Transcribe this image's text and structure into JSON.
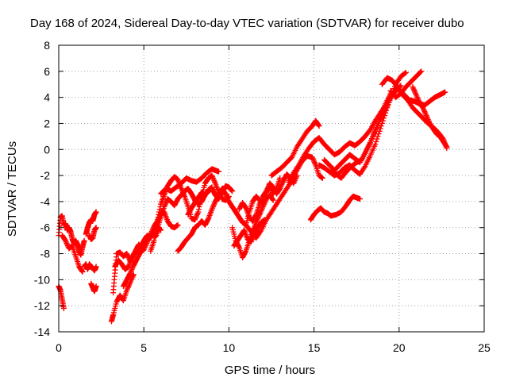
{
  "colors": {
    "series": "#ff0000",
    "grid": "#a0a0a0",
    "axis": "#000000",
    "background": "#ffffff"
  },
  "chart_data": {
    "type": "scatter",
    "title": "Day 168 of 2024, Sidereal Day-to-day VTEC variation (SDTVAR) for receiver dubo",
    "xlabel": "GPS time / hours",
    "ylabel": "SDTVAR / TECUs",
    "xlim": [
      0,
      25
    ],
    "ylim": [
      -14,
      8
    ],
    "xticks": [
      0,
      5,
      10,
      15,
      20,
      25
    ],
    "xtick_labels": [
      "0",
      "5",
      "10",
      "15",
      "20",
      "25"
    ],
    "yticks": [
      -14,
      -12,
      -10,
      -8,
      -6,
      -4,
      -2,
      0,
      2,
      4,
      6,
      8
    ],
    "ytick_labels": [
      "-14",
      "-12",
      "-10",
      "-8",
      "-6",
      "-4",
      "-2",
      "0",
      "2",
      "4",
      "6",
      "8"
    ],
    "grid": true,
    "grid_style": "dotted",
    "marker": "+",
    "series": [
      {
        "x": [
          0.0,
          0.1,
          0.2,
          0.3
        ],
        "y": [
          -10.5,
          -10.8,
          -11.5,
          -12.2
        ]
      },
      {
        "x": [
          0.0,
          0.1,
          0.2,
          0.3,
          0.4,
          0.5,
          0.6,
          0.7,
          0.8,
          0.9,
          1.0,
          1.1,
          1.2,
          1.3,
          1.4,
          1.5
        ],
        "y": [
          -6.6,
          -5.2,
          -5.1,
          -5.8,
          -5.7,
          -6.2,
          -6.0,
          -6.3,
          -6.9,
          -7.2,
          -7.0,
          -7.3,
          -7.8,
          -8.1,
          -7.5,
          -7.0
        ]
      },
      {
        "x": [
          0.2,
          0.4,
          0.6,
          0.8,
          1.0,
          1.2,
          1.4
        ],
        "y": [
          -6.6,
          -7.0,
          -7.6,
          -7.4,
          -8.2,
          -9.0,
          -9.4
        ]
      },
      {
        "x": [
          1.5,
          1.6,
          1.7,
          1.8,
          1.9,
          2.0,
          2.1,
          2.2
        ],
        "y": [
          -9.0,
          -8.8,
          -9.2,
          -8.8,
          -9.0,
          -9.1,
          -9.3,
          -9.0
        ]
      },
      {
        "x": [
          1.6,
          1.7,
          1.8,
          1.9,
          2.0,
          2.1,
          2.2
        ],
        "y": [
          -6.5,
          -6.0,
          -5.6,
          -5.4,
          -5.5,
          -5.0,
          -4.8
        ]
      },
      {
        "x": [
          1.8,
          1.9,
          2.0,
          2.1,
          2.2
        ],
        "y": [
          -6.6,
          -6.9,
          -6.8,
          -6.2,
          -6.0
        ]
      },
      {
        "x": [
          1.9,
          2.0,
          2.1,
          2.2
        ],
        "y": [
          -10.3,
          -10.6,
          -10.9,
          -10.5
        ]
      },
      {
        "x": [
          3.1,
          3.2,
          3.4,
          3.6,
          3.8,
          4.0,
          4.2,
          4.4
        ],
        "y": [
          -13.2,
          -12.7,
          -11.7,
          -11.2,
          -11.6,
          -10.8,
          -10.2,
          -9.6
        ]
      },
      {
        "x": [
          3.2,
          3.3,
          3.4,
          3.6,
          3.8,
          4.0,
          4.2,
          4.4,
          4.6,
          4.8,
          5.0,
          5.2,
          5.4,
          5.6,
          5.8,
          6.0
        ],
        "y": [
          -11.0,
          -9.5,
          -8.0,
          -7.9,
          -8.2,
          -8.0,
          -8.6,
          -8.1,
          -7.8,
          -7.5,
          -7.0,
          -6.6,
          -6.8,
          -6.2,
          -5.9,
          -6.2
        ]
      },
      {
        "x": [
          3.3,
          3.5,
          3.7,
          3.9,
          4.1,
          4.3,
          4.5,
          4.7,
          4.9,
          5.1,
          5.3,
          5.5,
          5.7,
          5.9
        ],
        "y": [
          -9.0,
          -8.5,
          -8.8,
          -9.2,
          -9.0,
          -8.3,
          -7.8,
          -7.3,
          -7.6,
          -7.0,
          -6.9,
          -6.4,
          -6.7,
          -6.0
        ]
      },
      {
        "x": [
          3.8,
          4.0,
          4.2,
          4.4,
          4.6,
          4.8,
          5.0,
          5.2,
          5.4,
          5.6,
          5.8,
          6.0,
          6.2,
          6.4,
          6.6,
          6.8,
          7.0
        ],
        "y": [
          -10.5,
          -10.0,
          -9.5,
          -8.9,
          -8.4,
          -7.9,
          -7.7,
          -7.1,
          -6.5,
          -5.9,
          -5.5,
          -4.9,
          -4.8,
          -5.5,
          -5.9,
          -6.0,
          -5.8
        ]
      },
      {
        "x": [
          5.4,
          5.6,
          5.8,
          6.0,
          6.2,
          6.4,
          6.6,
          6.8,
          7.0,
          7.2,
          7.4,
          7.6,
          7.8,
          8.0,
          8.2,
          8.4,
          8.6,
          8.8,
          9.0,
          9.2,
          9.4,
          9.6,
          9.8,
          10.0
        ],
        "y": [
          -7.8,
          -7.0,
          -5.4,
          -4.2,
          -3.5,
          -2.8,
          -2.4,
          -2.1,
          -2.3,
          -3.0,
          -3.6,
          -4.4,
          -5.3,
          -5.4,
          -4.8,
          -3.6,
          -2.6,
          -2.2,
          -2.0,
          -2.6,
          -3.3,
          -3.8,
          -3.9,
          -3.6
        ]
      },
      {
        "x": [
          5.8,
          6.0,
          6.2,
          6.4,
          6.6,
          6.8,
          7.0,
          7.2,
          7.4,
          7.6,
          7.8,
          8.0,
          8.2,
          8.4,
          8.6,
          8.8,
          9.0
        ],
        "y": [
          -6.0,
          -5.2,
          -4.4,
          -3.8,
          -4.0,
          -4.3,
          -3.8,
          -3.5,
          -3.2,
          -3.0,
          -3.4,
          -3.9,
          -4.2,
          -4.0,
          -3.5,
          -3.1,
          -2.9
        ]
      },
      {
        "x": [
          6.0,
          6.3,
          6.6,
          6.9,
          7.2,
          7.5,
          7.8,
          8.1,
          8.4,
          8.7,
          9.0,
          9.2,
          9.4
        ],
        "y": [
          -3.4,
          -3.0,
          -3.2,
          -2.9,
          -2.6,
          -2.2,
          -2.4,
          -2.5,
          -2.2,
          -1.8,
          -1.5,
          -1.6,
          -1.7
        ]
      },
      {
        "x": [
          7.0,
          7.2,
          7.4,
          7.6,
          7.8,
          8.0,
          8.2,
          8.4,
          8.6,
          8.8,
          9.0,
          9.2,
          9.4,
          9.6
        ],
        "y": [
          -7.8,
          -7.5,
          -7.1,
          -6.8,
          -6.5,
          -6.0,
          -5.8,
          -5.5,
          -5.8,
          -5.3,
          -4.6,
          -4.0,
          -3.5,
          -3.0
        ]
      },
      {
        "x": [
          7.6,
          7.8,
          8.0,
          8.2,
          8.4,
          8.6,
          8.8,
          9.0,
          9.2,
          9.4,
          9.6,
          9.8,
          10.0,
          10.2
        ],
        "y": [
          -5.0,
          -4.5,
          -4.1,
          -3.7,
          -3.3,
          -3.5,
          -3.2,
          -3.0,
          -3.5,
          -3.8,
          -3.3,
          -2.8,
          -2.9,
          -3.2
        ]
      },
      {
        "x": [
          9.6,
          9.8,
          10.0,
          10.2,
          10.4,
          10.6,
          10.8,
          11.0,
          11.2,
          11.4,
          11.6,
          11.8,
          12.0,
          12.2,
          12.4,
          12.6,
          12.8,
          13.0
        ],
        "y": [
          -3.0,
          -3.4,
          -4.0,
          -4.4,
          -4.8,
          -5.2,
          -5.6,
          -5.8,
          -4.8,
          -4.0,
          -3.6,
          -3.9,
          -4.1,
          -3.3,
          -2.8,
          -3.4,
          -3.0,
          -2.2
        ]
      },
      {
        "x": [
          10.2,
          10.4,
          10.6,
          10.8,
          11.0,
          11.2,
          11.4,
          11.6,
          11.8,
          12.0,
          12.2,
          12.4,
          12.6
        ],
        "y": [
          -6.0,
          -7.0,
          -7.5,
          -8.3,
          -7.8,
          -7.0,
          -6.3,
          -5.6,
          -5.0,
          -4.4,
          -3.8,
          -3.5,
          -3.9
        ]
      },
      {
        "x": [
          10.3,
          10.5,
          10.7,
          10.9,
          11.1,
          11.3,
          11.5,
          11.7,
          11.9,
          12.1
        ],
        "y": [
          -7.4,
          -7.0,
          -6.6,
          -6.2,
          -6.9,
          -7.1,
          -6.5,
          -6.0,
          -5.6,
          -5.4
        ]
      },
      {
        "x": [
          10.6,
          10.8,
          11.0,
          11.2,
          11.4,
          11.6,
          11.8,
          12.0,
          12.2,
          12.4,
          12.6,
          12.8,
          13.0,
          13.2,
          13.4,
          13.6,
          13.8,
          14.0
        ],
        "y": [
          -4.6,
          -4.1,
          -4.5,
          -5.2,
          -5.5,
          -5.0,
          -4.2,
          -3.6,
          -3.2,
          -2.6,
          -2.9,
          -3.4,
          -3.0,
          -2.4,
          -1.9,
          -2.2,
          -2.6,
          -2.0
        ]
      },
      {
        "x": [
          11.0,
          11.3,
          11.6,
          11.9,
          12.2,
          12.5,
          12.8,
          13.1,
          13.4,
          13.7,
          14.0,
          14.3,
          14.6,
          14.9,
          15.1,
          15.3,
          15.5
        ],
        "y": [
          -5.8,
          -6.3,
          -6.8,
          -6.2,
          -5.4,
          -4.8,
          -4.2,
          -3.6,
          -3.0,
          -2.4,
          -1.6,
          -0.9,
          -0.5,
          -0.6,
          -1.2,
          -2.0,
          -2.2
        ]
      },
      {
        "x": [
          12.5,
          12.8,
          13.1,
          13.4,
          13.7,
          14.0,
          14.3,
          14.6,
          14.9,
          15.1,
          15.3
        ],
        "y": [
          -2.0,
          -1.7,
          -1.4,
          -1.0,
          -0.6,
          0.2,
          0.8,
          1.4,
          1.8,
          2.2,
          1.8
        ]
      },
      {
        "x": [
          13.5,
          13.8,
          14.1,
          14.4,
          14.7,
          15.0,
          15.3,
          15.6,
          15.9,
          16.2,
          16.5,
          16.8,
          17.1,
          17.4,
          17.7,
          18.0,
          18.3,
          18.6,
          18.9,
          19.2,
          19.5,
          19.8,
          20.1
        ],
        "y": [
          -2.5,
          -1.8,
          -1.2,
          -0.5,
          0.1,
          0.6,
          0.9,
          0.4,
          0.0,
          -0.4,
          -0.2,
          0.2,
          0.5,
          0.3,
          0.6,
          1.0,
          1.5,
          2.2,
          2.8,
          3.4,
          4.0,
          4.5,
          4.9
        ]
      },
      {
        "x": [
          15.3,
          15.6,
          15.9,
          16.2,
          16.5,
          16.8,
          17.1,
          17.4,
          17.7,
          18.0,
          18.3,
          18.6,
          18.9,
          19.2,
          19.5,
          19.8,
          20.1,
          20.4
        ],
        "y": [
          -1.2,
          -1.4,
          -1.7,
          -2.0,
          -1.8,
          -1.4,
          -1.2,
          -1.6,
          -1.9,
          -1.3,
          -0.5,
          0.4,
          1.6,
          2.8,
          4.0,
          5.0,
          5.6,
          5.9
        ]
      },
      {
        "x": [
          15.6,
          15.9,
          16.2,
          16.5,
          16.8,
          17.1,
          17.4,
          17.7,
          18.0,
          18.3,
          18.6,
          18.9,
          19.2,
          19.5
        ],
        "y": [
          -0.8,
          -1.2,
          -1.6,
          -1.2,
          -0.8,
          -0.4,
          -0.7,
          -1.0,
          -0.3,
          0.5,
          1.5,
          2.5,
          3.5,
          4.3
        ]
      },
      {
        "x": [
          16.0,
          16.3,
          16.6,
          16.9,
          17.2,
          17.5,
          17.8,
          18.1,
          18.4,
          18.7,
          19.0,
          19.3,
          19.6,
          19.9
        ],
        "y": [
          -1.6,
          -1.9,
          -2.2,
          -1.7,
          -1.3,
          -1.0,
          -0.8,
          0.0,
          0.8,
          1.7,
          2.6,
          3.3,
          4.2,
          4.8
        ]
      },
      {
        "x": [
          14.8,
          15.0,
          15.2,
          15.4,
          15.6,
          15.8,
          16.0,
          16.3,
          16.6,
          16.9,
          17.1,
          17.3,
          17.5,
          17.7
        ],
        "y": [
          -5.4,
          -5.0,
          -4.7,
          -4.5,
          -4.8,
          -4.9,
          -5.1,
          -5.0,
          -4.8,
          -4.3,
          -3.9,
          -3.6,
          -3.7,
          -3.8
        ]
      },
      {
        "x": [
          19.0,
          19.3,
          19.6,
          19.9,
          20.2,
          20.5,
          20.8,
          21.1,
          21.4,
          21.7,
          22.0,
          22.3,
          22.6,
          22.8
        ],
        "y": [
          5.0,
          5.5,
          5.3,
          4.8,
          4.2,
          3.8,
          3.2,
          2.8,
          2.4,
          2.0,
          1.7,
          1.3,
          0.8,
          0.1
        ]
      },
      {
        "x": [
          19.5,
          19.8,
          20.1,
          20.4,
          20.7,
          21.0,
          21.3
        ],
        "y": [
          4.5,
          4.0,
          4.3,
          4.8,
          5.2,
          5.6,
          6.0
        ]
      },
      {
        "x": [
          20.0,
          20.3,
          20.6,
          20.9,
          21.2,
          21.5,
          21.8,
          22.1,
          22.4,
          22.7
        ],
        "y": [
          4.6,
          4.2,
          3.8,
          3.7,
          3.5,
          3.4,
          3.7,
          4.0,
          4.2,
          4.4
        ]
      },
      {
        "x": [
          20.8,
          21.0,
          21.2,
          21.4,
          21.6,
          21.8,
          22.0,
          22.2,
          22.4,
          22.6,
          22.8
        ],
        "y": [
          4.8,
          4.2,
          3.6,
          3.2,
          2.6,
          2.0,
          1.6,
          1.2,
          1.0,
          0.6,
          0.2
        ]
      }
    ]
  }
}
